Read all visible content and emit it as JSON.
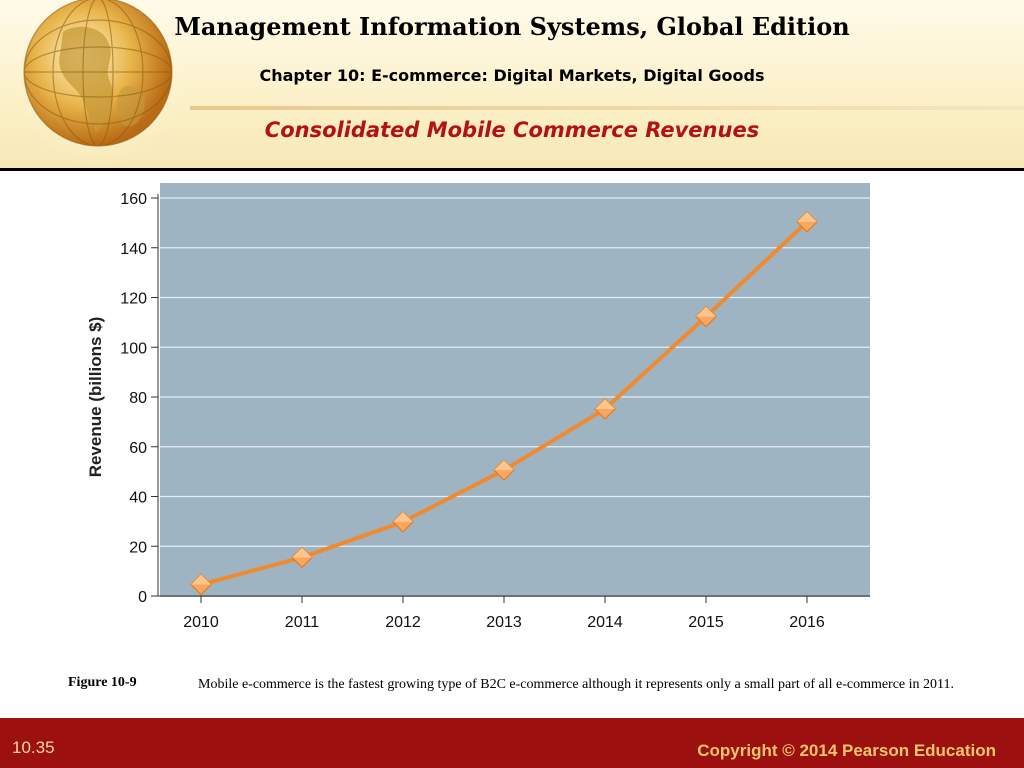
{
  "header": {
    "book_title": "Management Information Systems, Global Edition",
    "chapter": "Chapter 10: E-commerce: Digital Markets, Digital Goods",
    "slide_title": "Consolidated Mobile Commerce Revenues"
  },
  "chart_data": {
    "type": "line",
    "x": [
      "2010",
      "2011",
      "2012",
      "2013",
      "2014",
      "2015",
      "2016"
    ],
    "series": [
      {
        "values": [
          4.6,
          15.5,
          29.8,
          50.6,
          75.2,
          112.3,
          150.4
        ],
        "color": "#f08a2e"
      }
    ],
    "ylabel": "Revenue (billions $)",
    "ylim": [
      0,
      160
    ],
    "yticks": [
      0,
      20,
      40,
      60,
      80,
      100,
      120,
      140,
      160
    ],
    "grid": true,
    "plot_background": "#9fb4c2",
    "marker": "diamond",
    "marker_color": "#f8a760"
  },
  "caption": {
    "label": "Figure 10-9",
    "text": "Mobile e-commerce is the fastest growing type of B2C e-commerce although it represents only a small part of all e-commerce in 2011."
  },
  "footer": {
    "slide_number": "10.35",
    "copyright": "Copyright © 2014 Pearson Education",
    "background": "#9c1010"
  }
}
